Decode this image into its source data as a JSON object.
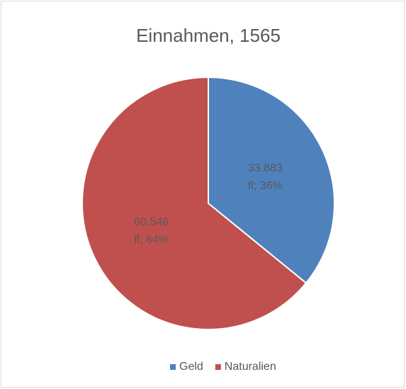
{
  "chart_data": {
    "type": "pie",
    "title": "Einnahmen, 1565",
    "categories": [
      "Geld",
      "Naturalien"
    ],
    "values": [
      33883,
      60546
    ],
    "value_labels": [
      "33.883 fl; 36%",
      "60.546 fl; 64%"
    ],
    "colors": [
      "#4f81bd",
      "#c0504d"
    ],
    "legend": "bottom"
  }
}
